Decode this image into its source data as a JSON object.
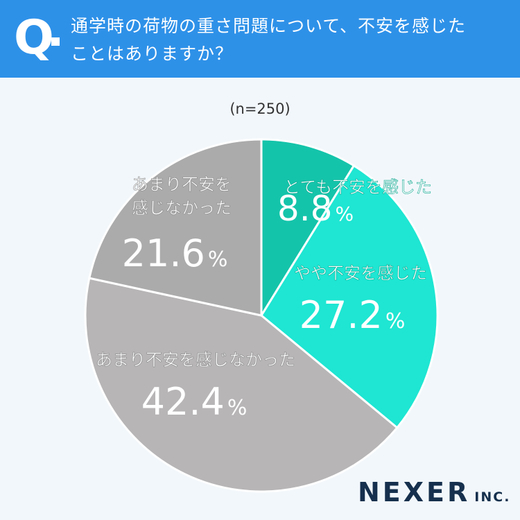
{
  "header": {
    "q_mark": "Q",
    "question_line1": "通学時の荷物の重さ問題について、不安を感じた",
    "question_line2": "ことはありますか？"
  },
  "sample_size": "(n=250)",
  "logo": {
    "main": "NEXER",
    "sub": "INC."
  },
  "colors": {
    "header_bg": "#2e91e8",
    "very_anxious": "#14c4aa",
    "somewhat_anxious": "#1ee6d2",
    "not_much": "#ababab",
    "not_at_all": "#b7b5b6"
  },
  "chart_data": {
    "type": "pie",
    "title": "通学時の荷物の重さ問題について、不安を感じたことはありますか？",
    "slices": [
      {
        "label": "とても不安を感じた",
        "value": 8.8,
        "display": "8.8",
        "color": "#14c4aa"
      },
      {
        "label": "やや不安を感じた",
        "value": 27.2,
        "display": "27.2",
        "color": "#1ee6d2"
      },
      {
        "label": "あまり不安を感じなかった",
        "value": 42.4,
        "display": "42.4",
        "color": "#b7b5b6"
      },
      {
        "label": "あまり不安を感じなかった",
        "value": 21.6,
        "display": "21.6",
        "color": "#ababab"
      }
    ],
    "unit": "%"
  }
}
